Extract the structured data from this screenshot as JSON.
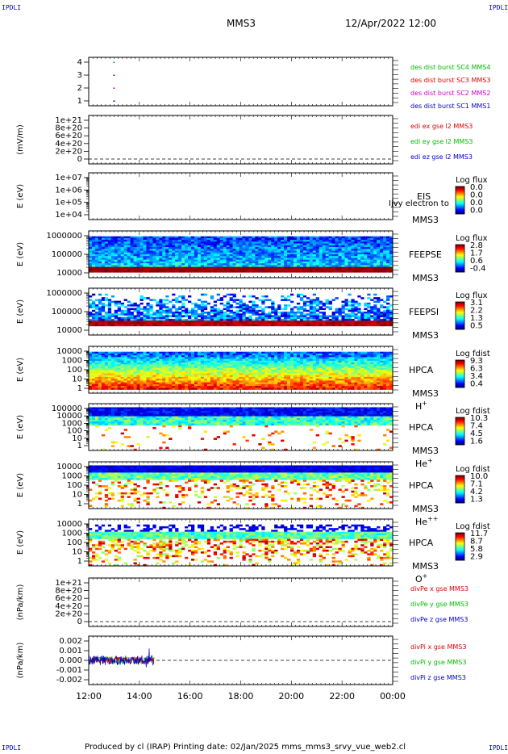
{
  "corner_label": "IPDLI",
  "header": {
    "spacecraft": "MMS3",
    "datetime": "12/Apr/2022 12:00"
  },
  "footer": "Produced by cl (IRAP)   Printing date: 02/Jan/2025   mms_mms3_srvy_vue_web2.cl",
  "x_axis": {
    "ticks": [
      "12:00",
      "14:00",
      "16:00",
      "18:00",
      "20:00",
      "22:00",
      "00:00"
    ]
  },
  "chart_data": [
    {
      "type": "scatter",
      "panel": "burst-availability",
      "yticks": [
        "1",
        "2",
        "3",
        "4"
      ],
      "ylim": [
        0.5,
        4.5
      ],
      "series": [
        {
          "name": "des dist burst SC1 MMS1",
          "color": "#0000cc",
          "y": 1,
          "x": [
            "13:00"
          ]
        },
        {
          "name": "des dist burst SC2 MMS2",
          "color": "#cc00cc",
          "y": 2,
          "x": [
            "13:00"
          ]
        },
        {
          "name": "des dist burst SC3 MMS3",
          "color": "#dd0000",
          "y": 3,
          "x": [
            "13:00"
          ]
        },
        {
          "name": "des dist burst SC4 MMS4",
          "color": "#00bb00",
          "y": 4,
          "x": [
            "13:00"
          ]
        }
      ]
    },
    {
      "type": "line",
      "panel": "edi-e-field",
      "ylabel": "(mV/m)",
      "yticks": [
        "0",
        "2e+20",
        "4e+20",
        "6e+20",
        "8e+20",
        "1e+21"
      ],
      "ylim": [
        0,
        1.2e+21
      ],
      "zero_line": true,
      "series": [
        {
          "name": "edi ex gse l2 MMS3",
          "color": "#dd0000"
        },
        {
          "name": "edi ey gse l2 MMS3",
          "color": "#00bb00"
        },
        {
          "name": "edi ez gse l2 MMS3",
          "color": "#0000cc"
        }
      ]
    },
    {
      "type": "heatmap",
      "panel": "eis",
      "ylabel": "E (eV)",
      "yticks": [
        "1e+04",
        "1e+05",
        "1e+06",
        "1e+07"
      ],
      "scale": "log",
      "instrument": "EIS",
      "spacecraft": "MMS3",
      "overlay_text": "Ijvy electron to",
      "colorbar": {
        "title": "Log flux",
        "ticks": [
          "0.0",
          "0.0",
          "0.0",
          "0.0"
        ]
      }
    },
    {
      "type": "heatmap",
      "panel": "feeps-electron",
      "ylabel": "E (eV)",
      "yticks": [
        "10000",
        "100000",
        "1000000"
      ],
      "scale": "log",
      "instrument": "FEEPSE",
      "spacecraft": "MMS3",
      "colorbar": {
        "title": "Log flux",
        "ticks": [
          "2.8",
          "1.7",
          "0.6",
          "-0.4"
        ]
      }
    },
    {
      "type": "heatmap",
      "panel": "feeps-ion",
      "ylabel": "E (eV)",
      "yticks": [
        "10000",
        "100000",
        "1000000"
      ],
      "scale": "log",
      "instrument": "FEEPSI",
      "spacecraft": "MMS3",
      "colorbar": {
        "title": "Log flux",
        "ticks": [
          "3.1",
          "2.2",
          "1.3",
          "0.5"
        ]
      }
    },
    {
      "type": "heatmap",
      "panel": "hpca-h",
      "ylabel": "E (eV)",
      "yticks": [
        "1",
        "10",
        "100",
        "1000",
        "10000"
      ],
      "scale": "log",
      "instrument": "HPCA",
      "spacecraft": "MMS3",
      "species": "H",
      "charge": "+",
      "colorbar": {
        "title": "Log fdist",
        "ticks": [
          "9.3",
          "6.3",
          "3.4",
          "0.4"
        ]
      }
    },
    {
      "type": "heatmap",
      "panel": "hpca-he",
      "ylabel": "E (eV)",
      "yticks": [
        "1",
        "10",
        "100",
        "1000",
        "10000",
        "100000"
      ],
      "scale": "log",
      "instrument": "HPCA",
      "spacecraft": "MMS3",
      "species": "He",
      "charge": "+",
      "colorbar": {
        "title": "Log fdist",
        "ticks": [
          "10.3",
          "7.4",
          "4.5",
          "1.6"
        ]
      }
    },
    {
      "type": "heatmap",
      "panel": "hpca-he2",
      "ylabel": "E (eV)",
      "yticks": [
        "1",
        "10",
        "100",
        "1000",
        "10000"
      ],
      "scale": "log",
      "instrument": "HPCA",
      "spacecraft": "MMS3",
      "species": "He",
      "charge": "++",
      "colorbar": {
        "title": "Log fdist",
        "ticks": [
          "10.0",
          "7.1",
          "4.2",
          "1.3"
        ]
      }
    },
    {
      "type": "heatmap",
      "panel": "hpca-o",
      "ylabel": "E (eV)",
      "yticks": [
        "1",
        "10",
        "100",
        "1000",
        "10000"
      ],
      "scale": "log",
      "instrument": "HPCA",
      "spacecraft": "MMS3",
      "species": "O",
      "charge": "+",
      "colorbar": {
        "title": "Log fdist",
        "ticks": [
          "11.7",
          "8.7",
          "5.8",
          "2.9"
        ]
      }
    },
    {
      "type": "line",
      "panel": "div-pe",
      "ylabel": "(nPa/km)",
      "yticks": [
        "0",
        "2e+20",
        "4e+20",
        "6e+20",
        "8e+20",
        "1e+21"
      ],
      "ylim": [
        0,
        1.2e+21
      ],
      "zero_line": true,
      "series": [
        {
          "name": "divPe x gse MMS3",
          "color": "#dd0000"
        },
        {
          "name": "divPe y gse MMS3",
          "color": "#00bb00"
        },
        {
          "name": "divPe z gse MMS3",
          "color": "#0000cc"
        }
      ]
    },
    {
      "type": "line",
      "panel": "div-pi",
      "ylabel": "(nPa/km)",
      "yticks": [
        "-0.002",
        "-0.001",
        "0.000",
        "0.001",
        "0.002"
      ],
      "ylim": [
        -0.0024,
        0.0024
      ],
      "zero_line": true,
      "data_until": "14:35",
      "series": [
        {
          "name": "divPi x gse MMS3",
          "color": "#dd0000"
        },
        {
          "name": "divPi y gse MMS3",
          "color": "#00bb00"
        },
        {
          "name": "divPi z gse MMS3",
          "color": "#0000cc"
        }
      ]
    }
  ]
}
